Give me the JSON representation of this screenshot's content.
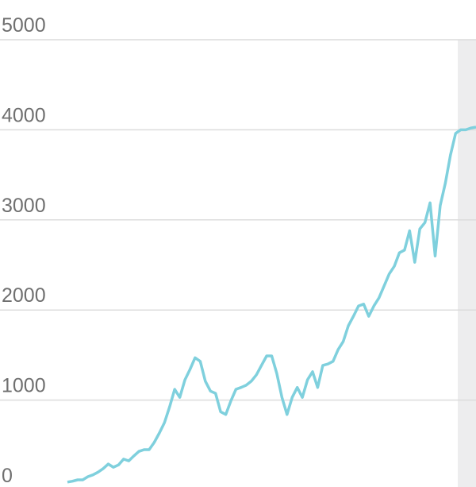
{
  "chart_data": {
    "type": "line",
    "categories": [
      null,
      null,
      null,
      null,
      null,
      null,
      null,
      null,
      null,
      null,
      null,
      null,
      null,
      null,
      null,
      null,
      null,
      null,
      null,
      null,
      null,
      null,
      null,
      null,
      null,
      null,
      null,
      null,
      null,
      null,
      null,
      null,
      null,
      null,
      null,
      null,
      null,
      null,
      null,
      null,
      null,
      null,
      null,
      null,
      null,
      null,
      null,
      null,
      null,
      null,
      null,
      null,
      null,
      null,
      null,
      null,
      null,
      null,
      null,
      null,
      null,
      null,
      null,
      null,
      null,
      null,
      null,
      null,
      null,
      null,
      null,
      null,
      null,
      null,
      null,
      null,
      null,
      null,
      null,
      null,
      null
    ],
    "series": [
      {
        "color": "#7fd0dd",
        "values": [
          90,
          100,
          115,
          115,
          150,
          170,
          200,
          240,
          290,
          255,
          280,
          345,
          325,
          380,
          430,
          450,
          450,
          530,
          635,
          750,
          925,
          1120,
          1030,
          1225,
          1340,
          1470,
          1430,
          1210,
          1100,
          1075,
          870,
          840,
          990,
          1120,
          1140,
          1165,
          1210,
          1280,
          1385,
          1490,
          1490,
          1295,
          1030,
          840,
          1030,
          1140,
          1030,
          1225,
          1315,
          1140,
          1385,
          1400,
          1430,
          1560,
          1650,
          1825,
          1930,
          2045,
          2065,
          1930,
          2045,
          2135,
          2265,
          2400,
          2485,
          2635,
          2665,
          2880,
          2530,
          2900,
          2970,
          3190,
          2600,
          3160,
          3410,
          3720,
          3960,
          4000,
          4000,
          4020,
          4030
        ]
      }
    ],
    "ylim": [
      0,
      5000
    ],
    "yticks": [
      0,
      1000,
      2000,
      3000,
      4000,
      5000
    ],
    "grid": true
  }
}
